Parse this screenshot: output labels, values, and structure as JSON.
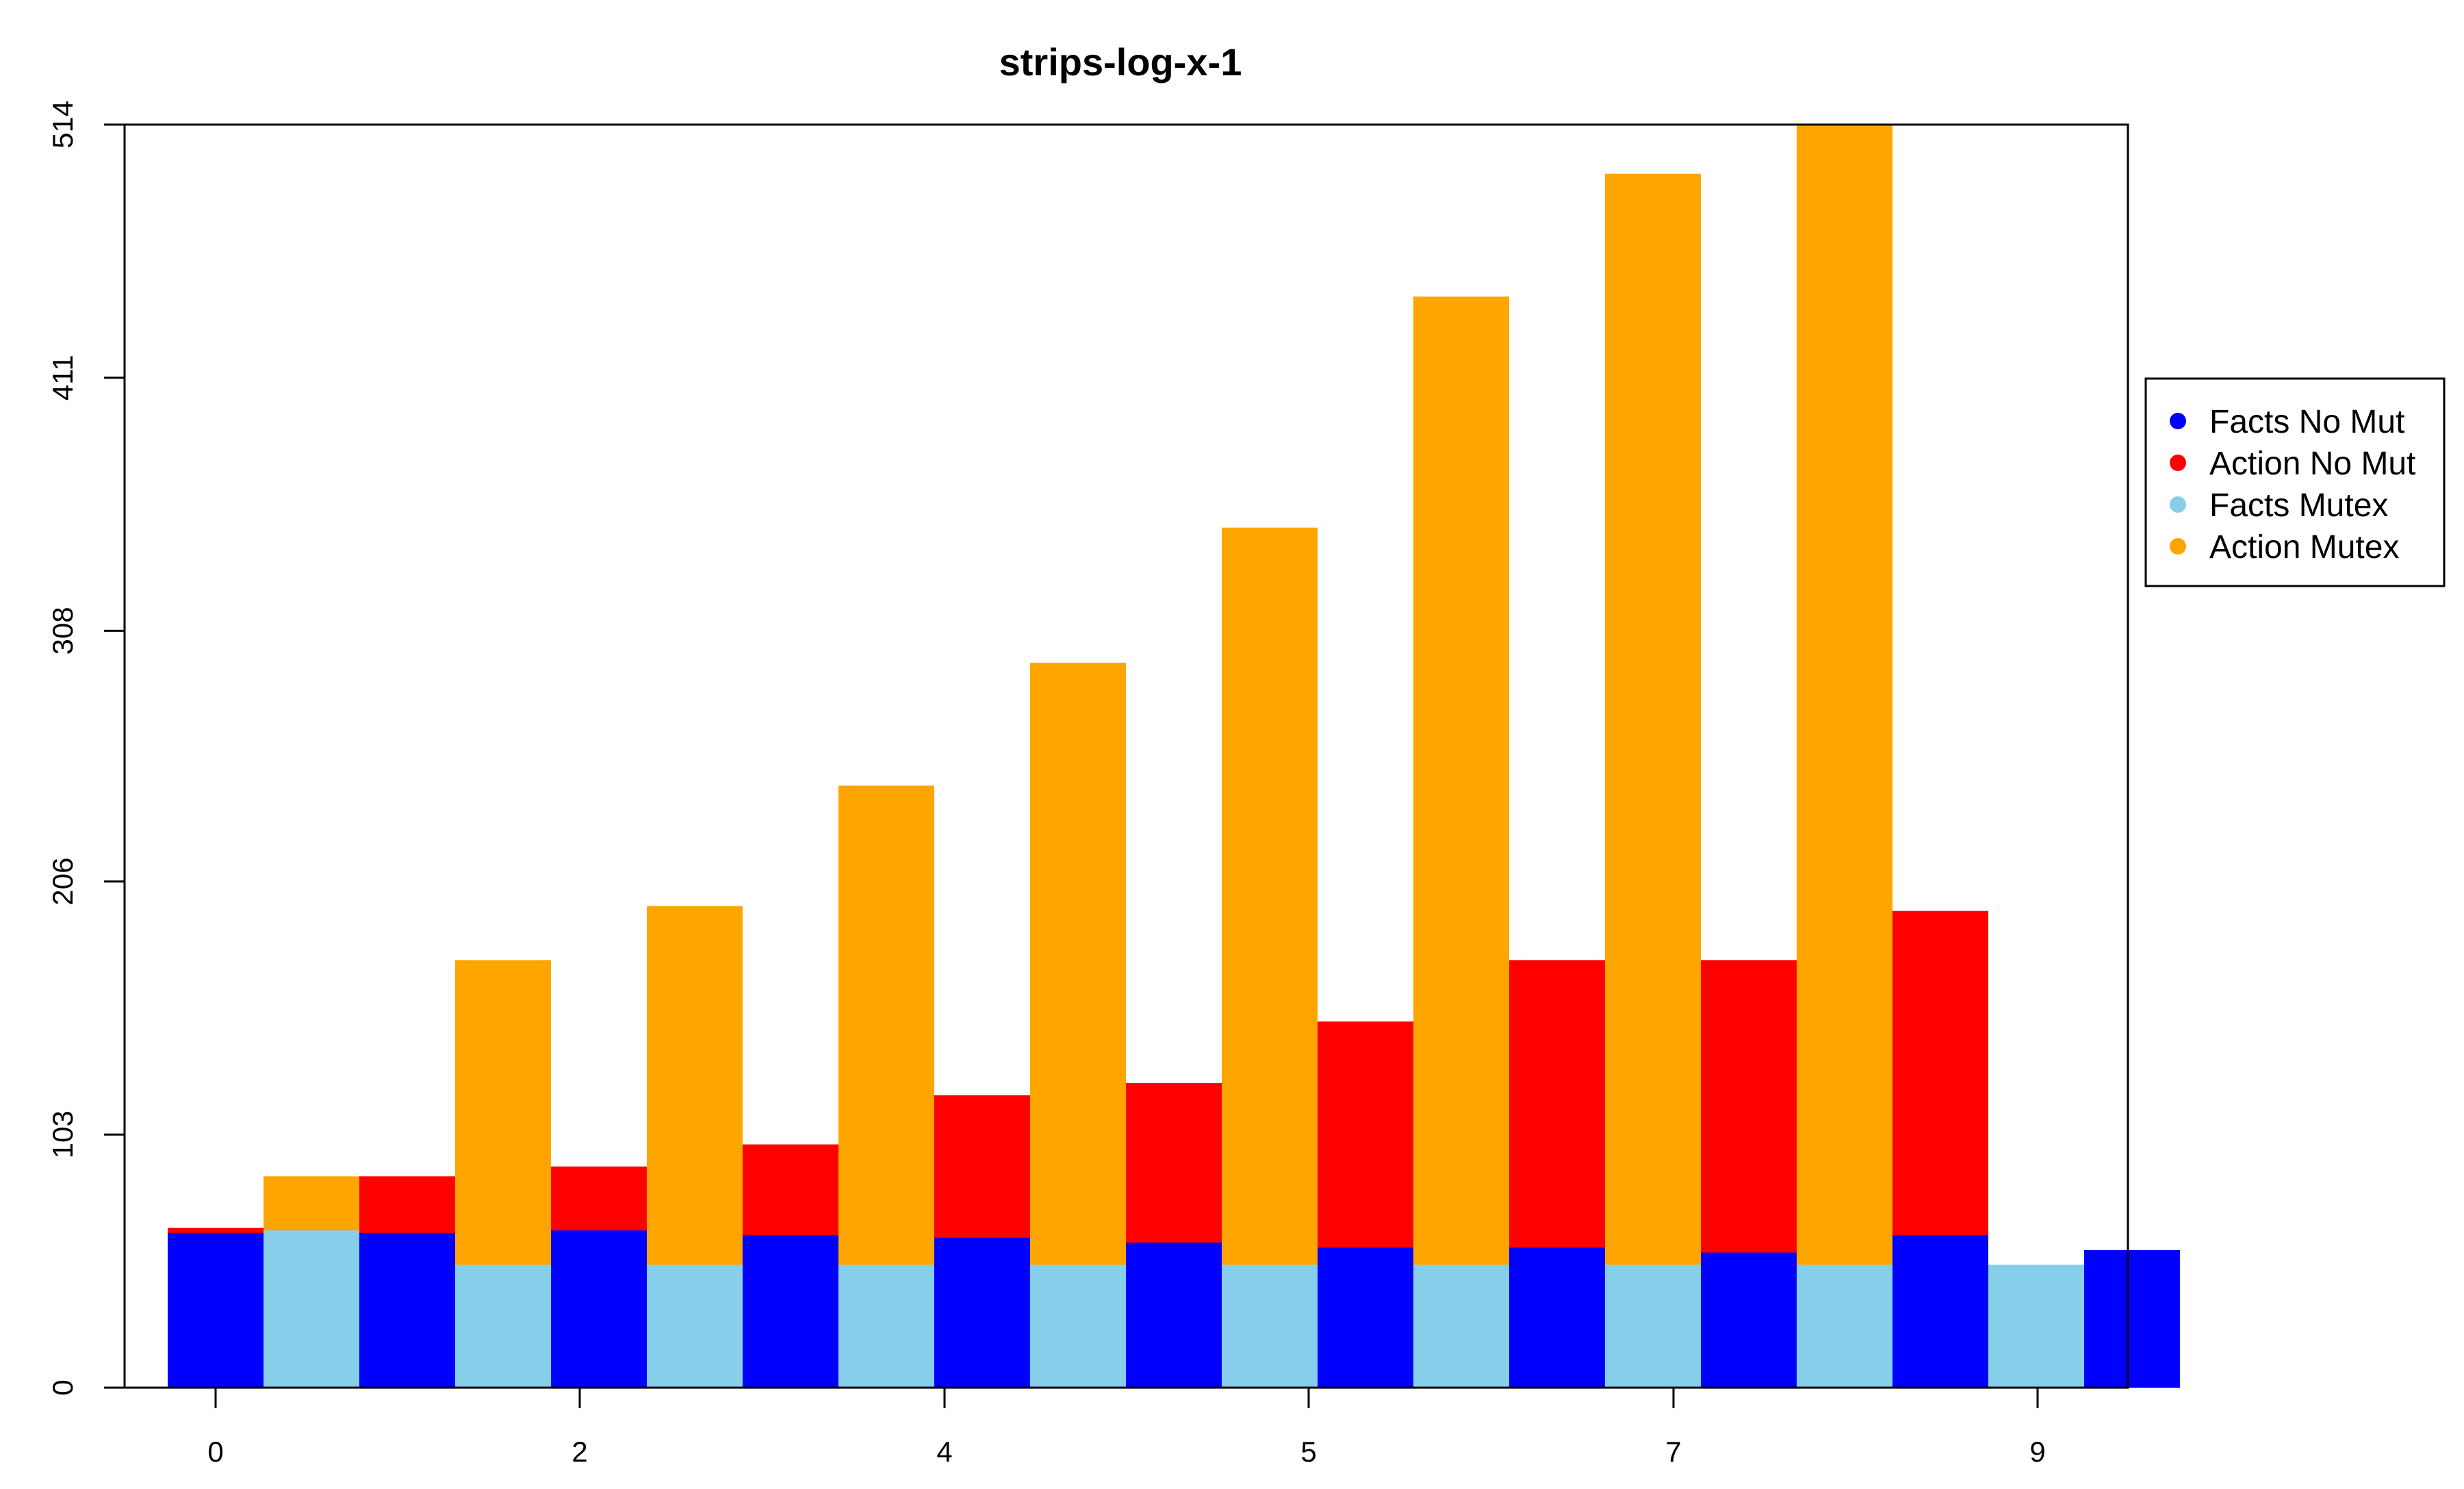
{
  "chart_data": {
    "type": "bar",
    "title": "strips-log-x-1",
    "xlabel": "",
    "ylabel": "",
    "ylim": [
      0,
      514
    ],
    "y_ticks": [
      0,
      103,
      206,
      308,
      411,
      514
    ],
    "x_tick_labels": [
      "0",
      "2",
      "4",
      "5",
      "7",
      "9"
    ],
    "legend": {
      "placement": "right",
      "entries": [
        {
          "name": "Facts No Mut",
          "color": "#0000ff"
        },
        {
          "name": "Action No Mut",
          "color": "#ff0000"
        },
        {
          "name": "Facts Mutex",
          "color": "#87ceeb"
        },
        {
          "name": "Action Mutex",
          "color": "#ffa500"
        }
      ]
    },
    "series": [
      {
        "name": "Facts No Mut",
        "color": "#0000ff",
        "values": [
          63,
          63,
          64,
          62,
          61,
          59,
          57,
          57,
          55,
          62,
          56
        ]
      },
      {
        "name": "Action No Mut",
        "color": "#ff0000",
        "values": [
          65,
          86,
          90,
          99,
          119,
          124,
          149,
          174,
          174,
          194,
          0
        ]
      },
      {
        "name": "Facts Mutex",
        "color": "#87ceeb",
        "values": [
          64,
          50,
          50,
          50,
          50,
          50,
          50,
          50,
          50,
          50
        ]
      },
      {
        "name": "Action Mutex",
        "color": "#ffa500",
        "values": [
          86,
          174,
          196,
          245,
          295,
          350,
          444,
          494,
          514,
          1
        ]
      }
    ]
  }
}
